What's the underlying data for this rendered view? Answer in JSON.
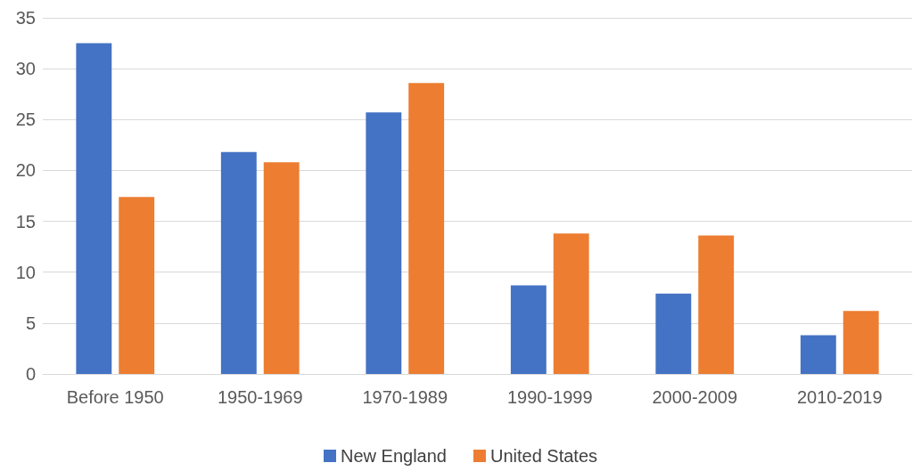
{
  "chart_data": {
    "type": "bar",
    "categories": [
      "Before 1950",
      "1950-1969",
      "1970-1989",
      "1990-1999",
      "2000-2009",
      "2010-2019"
    ],
    "series": [
      {
        "name": "New England",
        "color": "#4472c4",
        "values": [
          32.5,
          21.8,
          25.7,
          8.7,
          7.9,
          3.8
        ]
      },
      {
        "name": "United States",
        "color": "#ed7d31",
        "values": [
          17.4,
          20.8,
          28.6,
          13.8,
          13.6,
          6.2
        ]
      }
    ],
    "ylim": [
      0,
      35
    ],
    "yticks": [
      0,
      5,
      10,
      15,
      20,
      25,
      30,
      35
    ],
    "grid": "y",
    "legend": "bottom"
  }
}
